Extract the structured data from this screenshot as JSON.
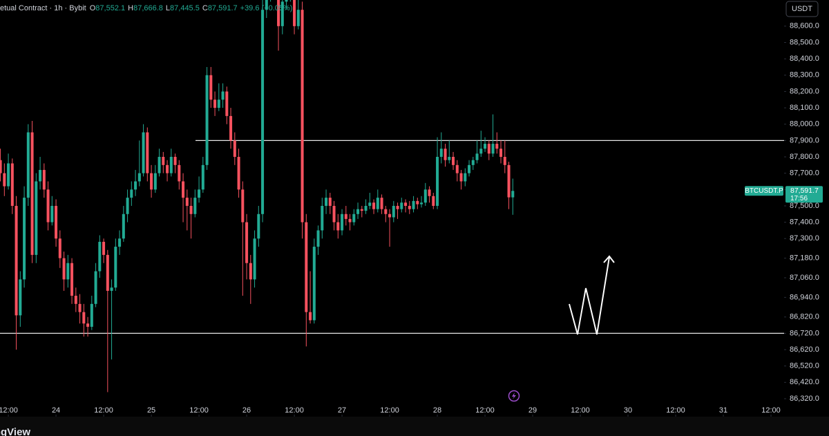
{
  "chart_data": {
    "type": "candlestick",
    "header": {
      "symbol": "etual Contract · 1h · Bybit",
      "ohlc": [
        {
          "label": "O",
          "value": "87,552.1"
        },
        {
          "label": "H",
          "value": "87,666.8"
        },
        {
          "label": "L",
          "value": "87,445.5"
        },
        {
          "label": "C",
          "value": "87,591.7"
        }
      ],
      "change": "+39.6 (+0.05%)"
    },
    "currency": "USDT",
    "watermark": "TradingView",
    "up_color": "#22ab94",
    "down_color": "#f7525f",
    "x": [
      10,
      11,
      12,
      13,
      14,
      15,
      16,
      17,
      18,
      19,
      20,
      21,
      22,
      23,
      24,
      25,
      26,
      27,
      28,
      29,
      30,
      31,
      32,
      33,
      34,
      35,
      36,
      37,
      38,
      39,
      40,
      41,
      42,
      43,
      44,
      45,
      46,
      47,
      48,
      49,
      50,
      51,
      52,
      53,
      54,
      55,
      56,
      57,
      58,
      59,
      60,
      61,
      62,
      63,
      64,
      65,
      66,
      67,
      68,
      69,
      70,
      71,
      72,
      73,
      74,
      75,
      76,
      77,
      78,
      79,
      80,
      81,
      82,
      83,
      84,
      85,
      86,
      87,
      88,
      89,
      90,
      91,
      92,
      93,
      94,
      95,
      96,
      97,
      98,
      99,
      100,
      101,
      102,
      103,
      104,
      105,
      106,
      107,
      108,
      109,
      110,
      111,
      112,
      113,
      114,
      115,
      116,
      117,
      118,
      119,
      120,
      121,
      122,
      123,
      124,
      125,
      126,
      127,
      128,
      129,
      130,
      131,
      132,
      133,
      134,
      135,
      136,
      137,
      138,
      139
    ],
    "candles": [
      [
        87780,
        87850,
        87650,
        87700
      ],
      [
        87700,
        87760,
        87560,
        87620
      ],
      [
        87620,
        87820,
        87600,
        87760
      ],
      [
        87760,
        87790,
        87450,
        87500
      ],
      [
        87500,
        87560,
        86620,
        86830
      ],
      [
        86830,
        87100,
        86760,
        87050
      ],
      [
        87050,
        87620,
        87000,
        87550
      ],
      [
        87550,
        88000,
        87500,
        87950
      ],
      [
        87950,
        88020,
        87150,
        87200
      ],
      [
        87200,
        87700,
        87150,
        87650
      ],
      [
        87650,
        87800,
        87600,
        87720
      ],
      [
        87720,
        87760,
        87550,
        87600
      ],
      [
        87600,
        87650,
        87350,
        87400
      ],
      [
        87400,
        87560,
        87380,
        87500
      ],
      [
        87500,
        87540,
        87250,
        87300
      ],
      [
        87300,
        87350,
        87120,
        87180
      ],
      [
        87180,
        87220,
        86980,
        87050
      ],
      [
        87050,
        87200,
        87000,
        87150
      ],
      [
        87150,
        87180,
        86900,
        86950
      ],
      [
        86950,
        87000,
        86850,
        86900
      ],
      [
        86900,
        86960,
        86780,
        86850
      ],
      [
        86850,
        86900,
        86700,
        86780
      ],
      [
        86780,
        86820,
        86700,
        86760
      ],
      [
        86760,
        86950,
        86740,
        86900
      ],
      [
        86900,
        87150,
        86880,
        87100
      ],
      [
        87100,
        87320,
        87060,
        87280
      ],
      [
        87280,
        87300,
        87150,
        87200
      ],
      [
        87200,
        87230,
        86360,
        86980
      ],
      [
        86980,
        87050,
        86560,
        87000
      ],
      [
        87000,
        87300,
        86980,
        87250
      ],
      [
        87250,
        87350,
        87200,
        87300
      ],
      [
        87300,
        87500,
        87280,
        87450
      ],
      [
        87450,
        87600,
        87400,
        87550
      ],
      [
        87550,
        87650,
        87500,
        87600
      ],
      [
        87600,
        87720,
        87560,
        87650
      ],
      [
        87650,
        87900,
        87620,
        87700
      ],
      [
        87700,
        88000,
        87680,
        87950
      ],
      [
        87950,
        87980,
        87650,
        87700
      ],
      [
        87700,
        87750,
        87550,
        87600
      ],
      [
        87600,
        87750,
        87580,
        87700
      ],
      [
        87700,
        87850,
        87680,
        87800
      ],
      [
        87800,
        87830,
        87700,
        87750
      ],
      [
        87750,
        87780,
        87650,
        87700
      ],
      [
        87700,
        87850,
        87680,
        87800
      ],
      [
        87800,
        87820,
        87700,
        87750
      ],
      [
        87750,
        87780,
        87600,
        87650
      ],
      [
        87650,
        87700,
        87400,
        87550
      ],
      [
        87550,
        87600,
        87350,
        87500
      ],
      [
        87500,
        87550,
        87300,
        87450
      ],
      [
        87450,
        87600,
        87430,
        87550
      ],
      [
        87550,
        87680,
        87520,
        87600
      ],
      [
        87600,
        87800,
        87580,
        87750
      ],
      [
        87750,
        88350,
        87720,
        88300
      ],
      [
        88300,
        88350,
        88100,
        88150
      ],
      [
        88150,
        88200,
        88050,
        88100
      ],
      [
        88100,
        88250,
        88080,
        88150
      ],
      [
        88150,
        88250,
        88100,
        88200
      ],
      [
        88200,
        88230,
        88000,
        88050
      ],
      [
        88050,
        88100,
        87850,
        87900
      ],
      [
        87900,
        87950,
        87750,
        87800
      ],
      [
        87800,
        87850,
        87550,
        87600
      ],
      [
        87600,
        87650,
        86950,
        87400
      ],
      [
        87400,
        87450,
        87050,
        87150
      ],
      [
        87150,
        87200,
        86900,
        87050
      ],
      [
        87050,
        87350,
        87000,
        87300
      ],
      [
        87300,
        87500,
        87250,
        87450
      ],
      [
        87450,
        88760,
        87400,
        88700
      ],
      [
        88700,
        88850,
        88650,
        88800
      ],
      [
        88800,
        89000,
        88750,
        88950
      ],
      [
        88950,
        89000,
        88850,
        88900
      ],
      [
        88900,
        88950,
        88450,
        88600
      ],
      [
        88600,
        88800,
        88550,
        88750
      ],
      [
        88750,
        88850,
        88700,
        88800
      ],
      [
        88800,
        88900,
        88750,
        88850
      ],
      [
        88850,
        88900,
        88550,
        88600
      ],
      [
        88600,
        88760,
        88580,
        88700
      ],
      [
        88700,
        88750,
        87300,
        87400
      ],
      [
        87400,
        87450,
        86640,
        86850
      ],
      [
        86850,
        87100,
        86780,
        86800
      ],
      [
        86800,
        87300,
        86780,
        87250
      ],
      [
        87250,
        87380,
        87200,
        87350
      ],
      [
        87350,
        87550,
        87300,
        87500
      ],
      [
        87500,
        87600,
        87450,
        87550
      ],
      [
        87550,
        87580,
        87450,
        87500
      ],
      [
        87500,
        87530,
        87350,
        87400
      ],
      [
        87400,
        87450,
        87300,
        87350
      ],
      [
        87350,
        87480,
        87320,
        87450
      ],
      [
        87450,
        87500,
        87380,
        87420
      ],
      [
        87420,
        87450,
        87350,
        87400
      ],
      [
        87400,
        87480,
        87380,
        87450
      ],
      [
        87450,
        87520,
        87420,
        87480
      ],
      [
        87480,
        87500,
        87430,
        87470
      ],
      [
        87470,
        87540,
        87450,
        87500
      ],
      [
        87500,
        87580,
        87480,
        87520
      ],
      [
        87520,
        87540,
        87450,
        87480
      ],
      [
        87480,
        87600,
        87460,
        87550
      ],
      [
        87550,
        87570,
        87450,
        87480
      ],
      [
        87480,
        87500,
        87400,
        87450
      ],
      [
        87450,
        87480,
        87250,
        87430
      ],
      [
        87430,
        87530,
        87400,
        87500
      ],
      [
        87500,
        87520,
        87420,
        87480
      ],
      [
        87480,
        87550,
        87460,
        87520
      ],
      [
        87520,
        87540,
        87460,
        87500
      ],
      [
        87500,
        87530,
        87450,
        87480
      ],
      [
        87480,
        87560,
        87460,
        87530
      ],
      [
        87530,
        87550,
        87480,
        87510
      ],
      [
        87510,
        87560,
        87490,
        87520
      ],
      [
        87520,
        87640,
        87500,
        87600
      ],
      [
        87600,
        87620,
        87520,
        87560
      ],
      [
        87560,
        87580,
        87480,
        87500
      ],
      [
        87500,
        87920,
        87480,
        87800
      ],
      [
        87800,
        87950,
        87760,
        87850
      ],
      [
        87850,
        87880,
        87740,
        87780
      ],
      [
        87780,
        87900,
        87760,
        87800
      ],
      [
        87800,
        87830,
        87720,
        87750
      ],
      [
        87750,
        87780,
        87650,
        87700
      ],
      [
        87700,
        87720,
        87600,
        87650
      ],
      [
        87650,
        87730,
        87620,
        87700
      ],
      [
        87700,
        87780,
        87680,
        87750
      ],
      [
        87750,
        87800,
        87720,
        87780
      ],
      [
        87780,
        87900,
        87760,
        87820
      ],
      [
        87820,
        87960,
        87800,
        87850
      ],
      [
        87850,
        87920,
        87830,
        87880
      ],
      [
        87880,
        87900,
        87780,
        87820
      ],
      [
        87820,
        88060,
        87800,
        87880
      ],
      [
        87880,
        87950,
        87820,
        87850
      ],
      [
        87850,
        87900,
        87760,
        87800
      ],
      [
        87800,
        87900,
        87700,
        87750
      ],
      [
        87750,
        87770,
        87480,
        87552.1
      ],
      [
        87552.1,
        87666.8,
        87445.5,
        87591.7
      ]
    ],
    "xlim": [
      9.9,
      207.3
    ],
    "xticks": [
      {
        "value": 12,
        "label": "12:00"
      },
      {
        "value": 24,
        "label": "24"
      },
      {
        "value": 36,
        "label": "12:00"
      },
      {
        "value": 48,
        "label": "25"
      },
      {
        "value": 60,
        "label": "12:00"
      },
      {
        "value": 72,
        "label": "26"
      },
      {
        "value": 84,
        "label": "12:00"
      },
      {
        "value": 96,
        "label": "27"
      },
      {
        "value": 108,
        "label": "12:00"
      },
      {
        "value": 120,
        "label": "28"
      },
      {
        "value": 132,
        "label": "12:00"
      },
      {
        "value": 144,
        "label": "29"
      },
      {
        "value": 156,
        "label": "12:00"
      },
      {
        "value": 168,
        "label": "30"
      },
      {
        "value": 180,
        "label": "12:00"
      },
      {
        "value": 192,
        "label": "31"
      },
      {
        "value": 204,
        "label": "12:00"
      }
    ],
    "ylim": [
      86210,
      88760
    ],
    "yticks": [
      {
        "value": 88600,
        "label": "88,600.0"
      },
      {
        "value": 88500,
        "label": "88,500.0"
      },
      {
        "value": 88400,
        "label": "88,400.0"
      },
      {
        "value": 88300,
        "label": "88,300.0"
      },
      {
        "value": 88200,
        "label": "88,200.0"
      },
      {
        "value": 88100,
        "label": "88,100.0"
      },
      {
        "value": 88000,
        "label": "88,000.0"
      },
      {
        "value": 87900,
        "label": "87,900.0"
      },
      {
        "value": 87800,
        "label": "87,800.0"
      },
      {
        "value": 87700,
        "label": "87,700.0"
      },
      {
        "value": 87600,
        "label": "87,600.0"
      },
      {
        "value": 87500,
        "label": "87,500.0"
      },
      {
        "value": 87400,
        "label": "87,400.0"
      },
      {
        "value": 87300,
        "label": "87,300.0"
      },
      {
        "value": 87180,
        "label": "87,180.0"
      },
      {
        "value": 87060,
        "label": "87,060.0"
      },
      {
        "value": 86940,
        "label": "86,940.0"
      },
      {
        "value": 86820,
        "label": "86,820.0"
      },
      {
        "value": 86720,
        "label": "86,720.0"
      },
      {
        "value": 86620,
        "label": "86,620.0"
      },
      {
        "value": 86520,
        "label": "86,520.0"
      },
      {
        "value": 86420,
        "label": "86,420.0"
      },
      {
        "value": 86320,
        "label": "86,320.0"
      }
    ],
    "levels": [
      87900,
      86720
    ],
    "symbol_tag": "BTCUSDT.P",
    "last_price": {
      "value": 87591.7,
      "label": "87,591.7"
    },
    "countdown": "17:56"
  }
}
